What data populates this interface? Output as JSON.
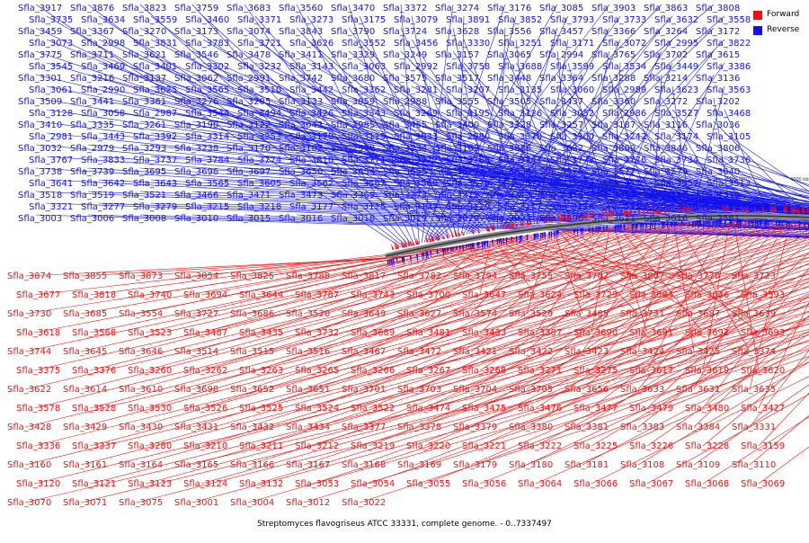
{
  "legend": {
    "forward_label": "Forward",
    "reverse_label": "Reverse",
    "forward_color": "#ee1111",
    "reverse_color": "#1111ee"
  },
  "caption": "Streptomyces flavogriseus ATCC 33331, complete genome. - 0..7337497",
  "scale_ticks": [
    "4600 kbp",
    "4500 kbp",
    "4400 kbp",
    "4300 kbp",
    "4200 kbp",
    "4100 kbp",
    "4000 kbp",
    "3900 kbp",
    "3800 kbp",
    "3700 kbp",
    "3600 kbp",
    "3500 kbp"
  ],
  "reverse_labels": [
    "Sfla_3917",
    "Sfla_3876",
    "Sfla_3823",
    "Sfla_3759",
    "Sfla_3683",
    "Sfla_3560",
    "Sfla_3470",
    "Sfla_3372",
    "Sfla_3274",
    "Sfla_3176",
    "Sfla_3085",
    "Sfla_3903",
    "Sfla_3863",
    "Sfla_3808",
    "Sfla_3735",
    "Sfla_3634",
    "Sfla_3559",
    "Sfla_3460",
    "Sfla_3371",
    "Sfla_3273",
    "Sfla_3175",
    "Sfla_3079",
    "Sfla_3891",
    "Sfla_3852",
    "Sfla_3793",
    "Sfla_3733",
    "Sfla_3632",
    "Sfla_3558",
    "Sfla_3459",
    "Sfla_3367",
    "Sfla_3270",
    "Sfla_3173",
    "Sfla_3074",
    "Sfla_3843",
    "Sfla_3790",
    "Sfla_3724",
    "Sfla_3628",
    "Sfla_3556",
    "Sfla_3457",
    "Sfla_3366",
    "Sfla_3264",
    "Sfla_3172",
    "Sfla_3073",
    "Sfla_2998",
    "Sfla_3831",
    "Sfla_3783",
    "Sfla_3721",
    "Sfla_3626",
    "Sfla_3552",
    "Sfla_3456",
    "Sfla_3330",
    "Sfla_3251",
    "Sfla_3171",
    "Sfla_3072",
    "Sfla_2995",
    "Sfla_3822",
    "Sfla_3775",
    "Sfla_3711",
    "Sfla_3621",
    "Sfla_3546",
    "Sfla_3478",
    "Sfla_3411",
    "Sfla_3329",
    "Sfla_3249",
    "Sfla_3157",
    "Sfla_3065",
    "Sfla_2994",
    "Sfla_3765",
    "Sfla_3702",
    "Sfla_3615",
    "Sfla_3545",
    "Sfla_3469",
    "Sfla_3401",
    "Sfla_3302",
    "Sfla_3232",
    "Sfla_3143",
    "Sfla_3063",
    "Sfla_2992",
    "Sfla_3758",
    "Sfla_3688",
    "Sfla_3599",
    "Sfla_3534",
    "Sfla_3449",
    "Sfla_3386",
    "Sfla_3301",
    "Sfla_3216",
    "Sfla_3137",
    "Sfla_3062",
    "Sfla_2991",
    "Sfla_3742",
    "Sfla_3680",
    "Sfla_3575",
    "Sfla_3517",
    "Sfla_3448",
    "Sfla_3364",
    "Sfla_3288",
    "Sfla_3214",
    "Sfla_3136",
    "Sfla_3061",
    "Sfla_2990",
    "Sfla_3625",
    "Sfla_3565",
    "Sfla_3510",
    "Sfla_3442",
    "Sfla_3362",
    "Sfla_3281",
    "Sfla_3207",
    "Sfla_3135",
    "Sfla_3060",
    "Sfla_2989",
    "Sfla_3623",
    "Sfla_3563",
    "Sfla_3509",
    "Sfla_3441",
    "Sfla_3361",
    "Sfla_3276",
    "Sfla_3205",
    "Sfla_3133",
    "Sfla_3059",
    "Sfla_2988",
    "Sfla_3555",
    "Sfla_3505",
    "Sfla_3437",
    "Sfla_3360",
    "Sfla_3272",
    "Sfla_3202",
    "Sfla_3128",
    "Sfla_3058",
    "Sfla_2987",
    "Sfla_3544",
    "Sfla_3494",
    "Sfla_3426",
    "Sfla_3343",
    "Sfla_3269",
    "Sfla_3195",
    "Sfla_3126",
    "Sfla_3052",
    "Sfla_2986",
    "Sfla_3527",
    "Sfla_3468",
    "Sfla_3410",
    "Sfla_3335",
    "Sfla_3261",
    "Sfla_3190",
    "Sfla_3122",
    "Sfla_3042",
    "Sfla_2985",
    "Sfla_3455",
    "Sfla_3400",
    "Sfla_3328",
    "Sfla_3257",
    "Sfla_3187",
    "Sfla_3116",
    "Sfla_3036",
    "Sfla_2981",
    "Sfla_3443",
    "Sfla_3392",
    "Sfla_3314",
    "Sfla_3253",
    "Sfla_3178",
    "Sfla_3115",
    "Sfla_3033",
    "Sfla_2980",
    "Sfla_3370",
    "Sfla_3300",
    "Sfla_3242",
    "Sfla_3174",
    "Sfla_3105",
    "Sfla_3032",
    "Sfla_2979",
    "Sfla_3293",
    "Sfla_3238",
    "Sfla_3170",
    "Sfla_3102",
    "Sfla_2978",
    "Sfla_3234",
    "Sfla_3162",
    "Sfla_3888",
    "Sfla_3832",
    "Sfla_3809",
    "Sfla_3846",
    "Sfla_3806",
    "Sfla_3767",
    "Sfla_3833",
    "Sfla_3737",
    "Sfla_3784",
    "Sfla_3774",
    "Sfla_3810",
    "Sfla_3771",
    "Sfla_3772",
    "Sfla_3786",
    "Sfla_3741",
    "Sfla_3773",
    "Sfla_3776",
    "Sfla_3734",
    "Sfla_3736",
    "Sfla_3738",
    "Sfla_3739",
    "Sfla_3695",
    "Sfla_3696",
    "Sfla_3697",
    "Sfla_3650",
    "Sfla_3654",
    "Sfla_3655",
    "Sfla_3629",
    "Sfla_3630",
    "Sfla_3576",
    "Sfla_3577",
    "Sfla_3579",
    "Sfla_3640",
    "Sfla_3641",
    "Sfla_3642",
    "Sfla_3643",
    "Sfla_3565",
    "Sfla_3605",
    "Sfla_3562",
    "Sfla_3567",
    "Sfla_3569",
    "Sfla_3570",
    "Sfla_3571",
    "Sfla_3572",
    "Sfla_3573",
    "Sfla_3557",
    "Sfla_3513",
    "Sfla_3518",
    "Sfla_3519",
    "Sfla_3521",
    "Sfla_3466",
    "Sfla_3471",
    "Sfla_3473",
    "Sfla_3369",
    "Sfla_3373",
    "Sfla_3312",
    "Sfla_3313",
    "Sfla_3316",
    "Sfla_3317",
    "Sfla_3318",
    "Sfla_3319",
    "Sfla_3321",
    "Sfla_3277",
    "Sfla_3279",
    "Sfla_3215",
    "Sfla_3218",
    "Sfla_3177",
    "Sfla_3125",
    "Sfla_3127",
    "Sfla_3129",
    "Sfla_3117",
    "Sfla_3118",
    "Sfla_3119",
    "Sfla_3078",
    "Sfla_3090",
    "Sfla_3003",
    "Sfla_3006",
    "Sfla_3008",
    "Sfla_3010",
    "Sfla_3015",
    "Sfla_3016",
    "Sfla_3018",
    "Sfla_3019",
    "Sfla_3020",
    "Sfla_3023",
    "Sfla_3596",
    "Sfla_3611",
    "Sfla_3616",
    "Sfla_3561"
  ],
  "forward_labels": [
    "Sfla_3874",
    "Sfla_3855",
    "Sfla_3873",
    "Sfla_3854",
    "Sfla_3825",
    "Sfla_3788",
    "Sfla_3817",
    "Sfla_3782",
    "Sfla_3794",
    "Sfla_3755",
    "Sfla_3707",
    "Sfla_3807",
    "Sfla_3770",
    "Sfla_3723",
    "Sfla_3677",
    "Sfla_3818",
    "Sfla_3740",
    "Sfla_3694",
    "Sfla_3644",
    "Sfla_3787",
    "Sfla_3743",
    "Sfla_3700",
    "Sfla_3647",
    "Sfla_3624",
    "Sfla_3729",
    "Sfla_3684",
    "Sfla_3636",
    "Sfla_3593",
    "Sfla_3730",
    "Sfla_3685",
    "Sfla_3554",
    "Sfla_3727",
    "Sfla_3686",
    "Sfla_3520",
    "Sfla_3649",
    "Sfla_3627",
    "Sfla_3574",
    "Sfla_3529",
    "Sfla_3485",
    "Sfla_3731",
    "Sfla_3687",
    "Sfla_3639",
    "Sfla_3618",
    "Sfla_3568",
    "Sfla_3523",
    "Sfla_3487",
    "Sfla_3435",
    "Sfla_3732",
    "Sfla_3689",
    "Sfla_3481",
    "Sfla_3433",
    "Sfla_3387",
    "Sfla_3690",
    "Sfla_3691",
    "Sfla_3692",
    "Sfla_3693",
    "Sfla_3744",
    "Sfla_3645",
    "Sfla_3646",
    "Sfla_3514",
    "Sfla_3515",
    "Sfla_3516",
    "Sfla_3467",
    "Sfla_3472",
    "Sfla_3421",
    "Sfla_3422",
    "Sfla_3423",
    "Sfla_3424",
    "Sfla_3425",
    "Sfla_3374",
    "Sfla_3375",
    "Sfla_3376",
    "Sfla_3260",
    "Sfla_3262",
    "Sfla_3263",
    "Sfla_3265",
    "Sfla_3266",
    "Sfla_3267",
    "Sfla_3268",
    "Sfla_3271",
    "Sfla_3275",
    "Sfla_3617",
    "Sfla_3619",
    "Sfla_3620",
    "Sfla_3622",
    "Sfla_3614",
    "Sfla_3610",
    "Sfla_3698",
    "Sfla_3652",
    "Sfla_3651",
    "Sfla_3701",
    "Sfla_3703",
    "Sfla_3704",
    "Sfla_3705",
    "Sfla_3656",
    "Sfla_3633",
    "Sfla_3631",
    "Sfla_3635",
    "Sfla_3578",
    "Sfla_3528",
    "Sfla_3530",
    "Sfla_3526",
    "Sfla_3525",
    "Sfla_3524",
    "Sfla_3522",
    "Sfla_3474",
    "Sfla_3475",
    "Sfla_3476",
    "Sfla_3477",
    "Sfla_3479",
    "Sfla_3480",
    "Sfla_3427",
    "Sfla_3428",
    "Sfla_3429",
    "Sfla_3430",
    "Sfla_3431",
    "Sfla_3432",
    "Sfla_3434",
    "Sfla_3377",
    "Sfla_3378",
    "Sfla_3379",
    "Sfla_3380",
    "Sfla_3381",
    "Sfla_3383",
    "Sfla_3384",
    "Sfla_3331",
    "Sfla_3336",
    "Sfla_3337",
    "Sfla_3280",
    "Sfla_3210",
    "Sfla_3211",
    "Sfla_3212",
    "Sfla_3219",
    "Sfla_3220",
    "Sfla_3221",
    "Sfla_3222",
    "Sfla_3225",
    "Sfla_3226",
    "Sfla_3228",
    "Sfla_3159",
    "Sfla_3160",
    "Sfla_3161",
    "Sfla_3164",
    "Sfla_3165",
    "Sfla_3166",
    "Sfla_3167",
    "Sfla_3168",
    "Sfla_3169",
    "Sfla_3179",
    "Sfla_3180",
    "Sfla_3181",
    "Sfla_3108",
    "Sfla_3109",
    "Sfla_3110",
    "Sfla_3120",
    "Sfla_3121",
    "Sfla_3123",
    "Sfla_3124",
    "Sfla_3132",
    "Sfla_3053",
    "Sfla_3054",
    "Sfla_3055",
    "Sfla_3056",
    "Sfla_3064",
    "Sfla_3066",
    "Sfla_3067",
    "Sfla_3068",
    "Sfla_3069",
    "Sfla_3070",
    "Sfla_3071",
    "Sfla_3075",
    "Sfla_3001",
    "Sfla_3004",
    "Sfla_3012",
    "Sfla_3022"
  ]
}
